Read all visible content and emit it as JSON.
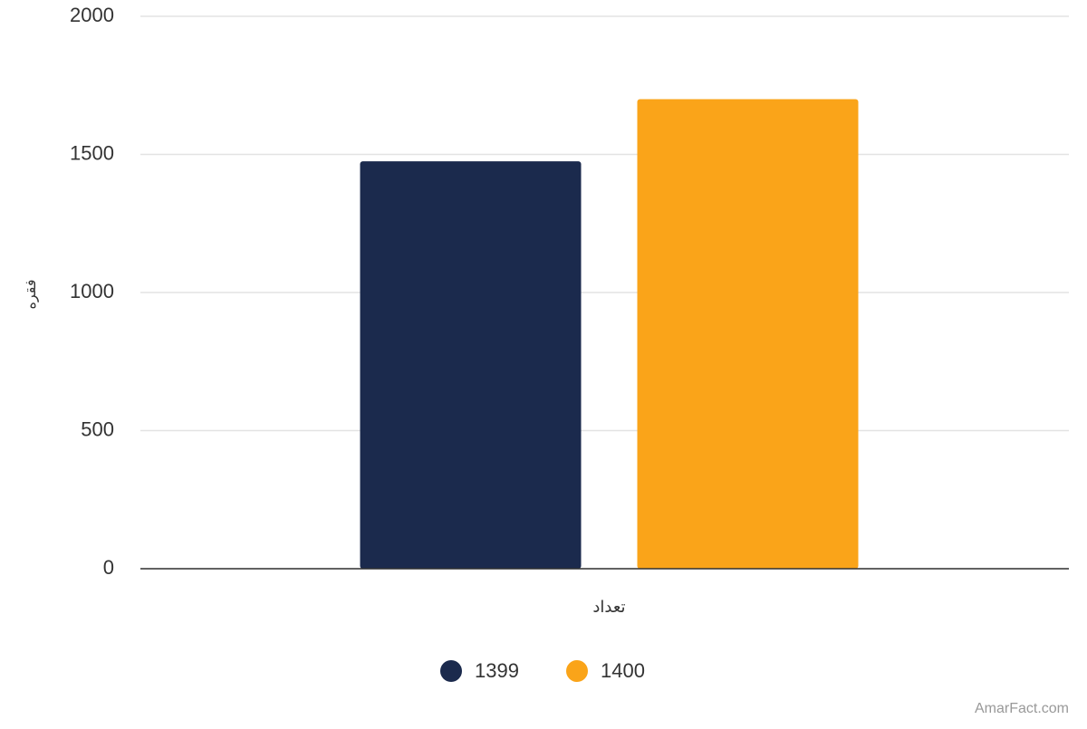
{
  "chart_data": {
    "type": "bar",
    "y_label": "فقره",
    "categories": [
      "تعداد"
    ],
    "series": [
      {
        "name": "1399",
        "color": "#1b2a4d",
        "values": [
          1475
        ]
      },
      {
        "name": "1400",
        "color": "#faa419",
        "values": [
          1700
        ]
      }
    ],
    "ylim": [
      0,
      2000
    ],
    "yticks": [
      0,
      500,
      1000,
      1500,
      2000
    ],
    "grid": true,
    "legend": "bottom",
    "watermark": "AmarFact.com"
  }
}
